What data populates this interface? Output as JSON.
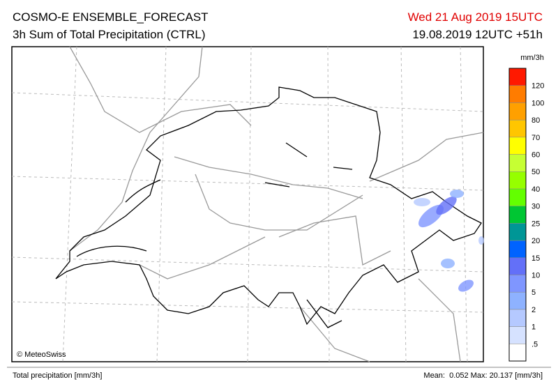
{
  "header": {
    "title": "COSMO-E ENSEMBLE_FORECAST",
    "subtitle": "3h Sum of Total Precipitation (CTRL)",
    "valid_time": "Wed 21 Aug 2019 15UTC",
    "run": "19.08.2019 12UTC +51h"
  },
  "map": {
    "credit": "© MeteoSwiss"
  },
  "legend": {
    "unit": "mm/3h",
    "colors": [
      "#ffffff",
      "#d6e2ff",
      "#b5c9ff",
      "#8eb2ff",
      "#7f96ff",
      "#6370f8",
      "#0063ff",
      "#009696",
      "#00c633",
      "#63ff00",
      "#96ff00",
      "#c6ff33",
      "#ffff00",
      "#ffc600",
      "#ffa000",
      "#ff7c00",
      "#ff1900"
    ],
    "labels": [
      ".5",
      "1",
      "2",
      "5",
      "10",
      "15",
      "20",
      "25",
      "30",
      "40",
      "50",
      "60",
      "70",
      "80",
      "100",
      "120"
    ]
  },
  "footer": {
    "left": "Total precipitation [mm/3h]",
    "right": "Mean:  0.052 Max: 20.137 [mm/3h]"
  }
}
